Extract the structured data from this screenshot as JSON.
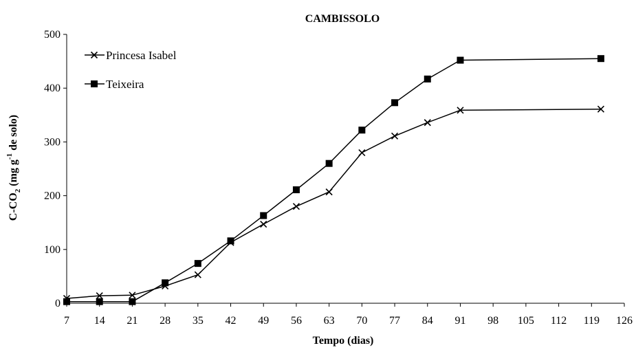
{
  "chart_data": {
    "type": "line",
    "title": "CAMBISSOLO",
    "xlabel": "Tempo  (dias)",
    "ylabel": {
      "prefix": "C-CO",
      "sub": "2",
      "mid": " (mg  g",
      "sup": "-1",
      "suffix": " de solo)"
    },
    "xlim": [
      7,
      126
    ],
    "ylim": [
      0,
      500
    ],
    "xticks": [
      7,
      14,
      21,
      28,
      35,
      42,
      49,
      56,
      63,
      70,
      77,
      84,
      91,
      98,
      105,
      112,
      119,
      126
    ],
    "yticks": [
      0,
      100,
      200,
      300,
      400,
      500
    ],
    "grid": false,
    "legend_position": "top-left",
    "series": [
      {
        "name": "Princesa Isabel",
        "marker": "x",
        "color": "#000000",
        "x": [
          7,
          14,
          21,
          28,
          35,
          42,
          49,
          56,
          63,
          70,
          77,
          84,
          91,
          121
        ],
        "y": [
          9,
          14,
          15,
          32,
          53,
          113,
          147,
          180,
          207,
          280,
          311,
          336,
          359,
          361
        ]
      },
      {
        "name": "Teixeira",
        "marker": "square",
        "color": "#000000",
        "x": [
          7,
          14,
          21,
          28,
          35,
          42,
          49,
          56,
          63,
          70,
          77,
          84,
          91,
          121
        ],
        "y": [
          3,
          3,
          3,
          38,
          74,
          116,
          163,
          211,
          260,
          322,
          373,
          417,
          452,
          455
        ]
      }
    ]
  }
}
